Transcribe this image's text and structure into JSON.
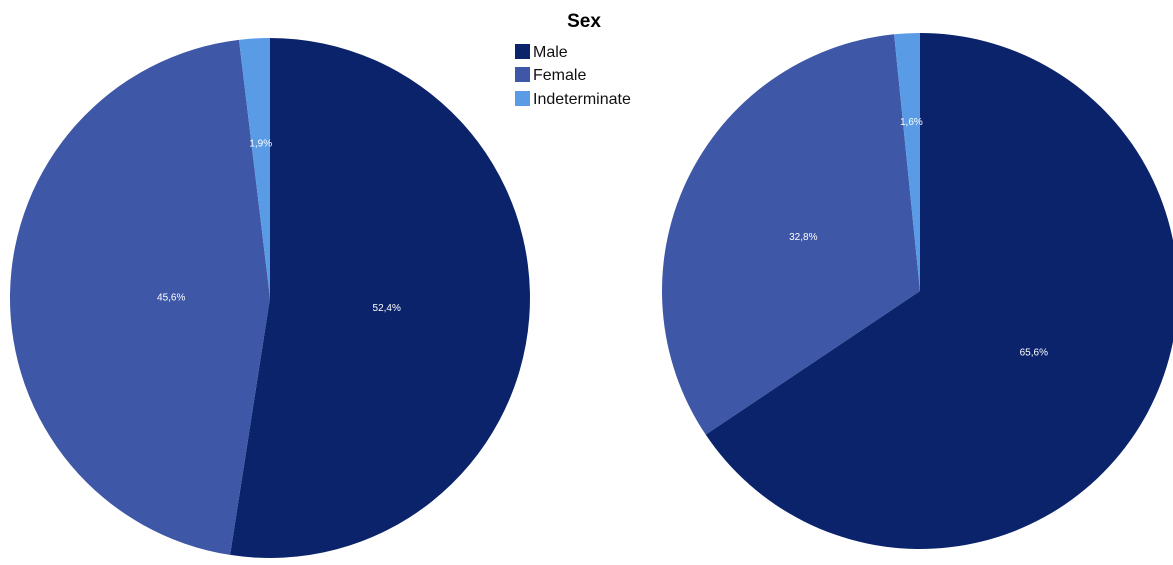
{
  "colors": {
    "male": "#0b236b",
    "female": "#3e57a6",
    "indeterminate": "#5a9be6"
  },
  "legend": {
    "title": "Sex",
    "items": [
      {
        "key": "male",
        "label": "Male"
      },
      {
        "key": "female",
        "label": "Female"
      },
      {
        "key": "indeterminate",
        "label": "Indeterminate"
      }
    ]
  },
  "chart_data": [
    {
      "type": "pie",
      "slices": [
        {
          "key": "male",
          "label": "Male",
          "value": 52.4,
          "text": "52,4%"
        },
        {
          "key": "female",
          "label": "Female",
          "value": 45.6,
          "text": "45,6%"
        },
        {
          "key": "indeterminate",
          "label": "Indeterminate",
          "value": 1.9,
          "text": "1,9%"
        }
      ]
    },
    {
      "type": "pie",
      "slices": [
        {
          "key": "male",
          "label": "Male",
          "value": 65.6,
          "text": "65,6%"
        },
        {
          "key": "female",
          "label": "Female",
          "value": 32.8,
          "text": "32,8%"
        },
        {
          "key": "indeterminate",
          "label": "Indeterminate",
          "value": 1.6,
          "text": "1,6%"
        }
      ]
    }
  ]
}
